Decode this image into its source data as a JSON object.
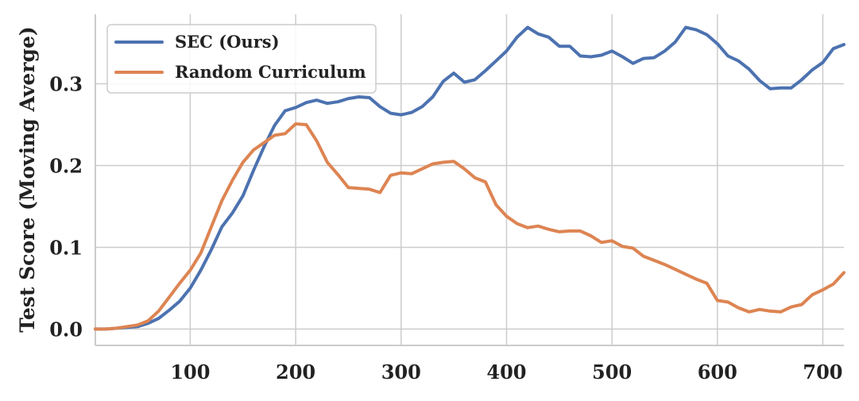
{
  "chart_data": {
    "type": "line",
    "title": "",
    "xlabel": "",
    "ylabel": "Test Score (Moving Averge)",
    "xlim": [
      10,
      720
    ],
    "ylim": [
      -0.02,
      0.385
    ],
    "xticks": [
      100,
      200,
      300,
      400,
      500,
      600,
      700
    ],
    "yticks": [
      0.0,
      0.1,
      0.2,
      0.3
    ],
    "ytick_labels": [
      "0.0",
      "0.1",
      "0.2",
      "0.3"
    ],
    "grid": true,
    "legend_position": "top-left",
    "series": [
      {
        "name": "SEC (Ours)",
        "color": "#4c72b0",
        "x": [
          10,
          20,
          30,
          40,
          50,
          60,
          70,
          80,
          90,
          100,
          110,
          120,
          130,
          140,
          150,
          160,
          170,
          180,
          190,
          200,
          210,
          220,
          230,
          240,
          250,
          260,
          270,
          280,
          290,
          300,
          310,
          320,
          330,
          340,
          350,
          360,
          370,
          380,
          390,
          400,
          410,
          420,
          430,
          440,
          450,
          460,
          470,
          480,
          490,
          500,
          510,
          520,
          530,
          540,
          550,
          560,
          570,
          580,
          590,
          600,
          610,
          620,
          630,
          640,
          650,
          660,
          670,
          680,
          690,
          700,
          710,
          720
        ],
        "y": [
          0.0,
          0.0,
          0.001,
          0.002,
          0.003,
          0.007,
          0.013,
          0.023,
          0.034,
          0.05,
          0.072,
          0.097,
          0.125,
          0.142,
          0.163,
          0.194,
          0.223,
          0.249,
          0.267,
          0.271,
          0.277,
          0.28,
          0.276,
          0.278,
          0.282,
          0.284,
          0.283,
          0.272,
          0.264,
          0.262,
          0.265,
          0.272,
          0.284,
          0.303,
          0.313,
          0.302,
          0.305,
          0.316,
          0.328,
          0.34,
          0.357,
          0.369,
          0.361,
          0.357,
          0.346,
          0.346,
          0.334,
          0.333,
          0.335,
          0.34,
          0.333,
          0.325,
          0.331,
          0.332,
          0.34,
          0.351,
          0.369,
          0.366,
          0.36,
          0.349,
          0.334,
          0.328,
          0.318,
          0.304,
          0.294,
          0.295,
          0.295,
          0.305,
          0.317,
          0.326,
          0.343,
          0.348
        ]
      },
      {
        "name": "Random Curriculum",
        "color": "#dd8452",
        "x": [
          10,
          20,
          30,
          40,
          50,
          60,
          70,
          80,
          90,
          100,
          110,
          120,
          130,
          140,
          150,
          160,
          170,
          180,
          190,
          200,
          210,
          220,
          230,
          240,
          250,
          260,
          270,
          280,
          290,
          300,
          310,
          320,
          330,
          340,
          350,
          360,
          370,
          380,
          390,
          400,
          410,
          420,
          430,
          440,
          450,
          460,
          470,
          480,
          490,
          500,
          510,
          520,
          530,
          540,
          550,
          560,
          570,
          580,
          590,
          600,
          610,
          620,
          630,
          640,
          650,
          660,
          670,
          680,
          690,
          700,
          710,
          720
        ],
        "y": [
          0.0,
          0.0,
          0.001,
          0.003,
          0.005,
          0.01,
          0.022,
          0.039,
          0.056,
          0.072,
          0.093,
          0.125,
          0.157,
          0.182,
          0.204,
          0.219,
          0.228,
          0.237,
          0.239,
          0.251,
          0.25,
          0.23,
          0.204,
          0.189,
          0.173,
          0.172,
          0.171,
          0.167,
          0.188,
          0.191,
          0.19,
          0.196,
          0.202,
          0.204,
          0.205,
          0.196,
          0.185,
          0.18,
          0.152,
          0.138,
          0.129,
          0.124,
          0.126,
          0.122,
          0.119,
          0.12,
          0.12,
          0.114,
          0.106,
          0.108,
          0.101,
          0.099,
          0.089,
          0.084,
          0.079,
          0.073,
          0.067,
          0.061,
          0.056,
          0.035,
          0.033,
          0.026,
          0.021,
          0.024,
          0.022,
          0.021,
          0.027,
          0.03,
          0.042,
          0.048,
          0.055,
          0.069
        ]
      }
    ]
  }
}
